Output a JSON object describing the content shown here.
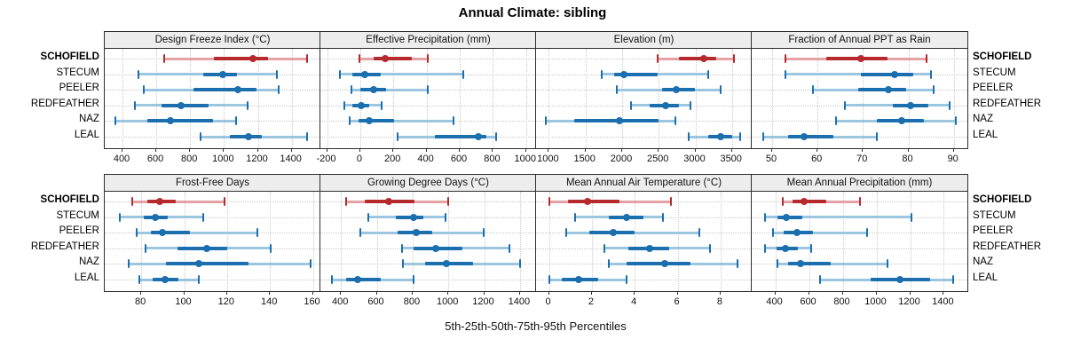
{
  "title": "Annual Climate: sibling",
  "caption": "5th-25th-50th-75th-95th Percentiles",
  "stations": [
    "SCHOFIELD",
    "STECUM",
    "PEELER",
    "REDFEATHER",
    "NAZ",
    "LEAL"
  ],
  "highlight_station": "SCHOFIELD",
  "colors": {
    "highlight_dark": "#b62a2e",
    "highlight_light": "#e5a2a4",
    "normal_dark": "#1b6fae",
    "normal_light": "#9cc5e0",
    "strip_bg": "#ededed",
    "panel_border": "#2e2e2e",
    "grid": "#c9c9c9"
  },
  "chart_data": {
    "type": "dotplot-percentiles",
    "percentile_labels": [
      "5th",
      "25th",
      "50th",
      "75th",
      "95th"
    ],
    "legend_note": "one series per station; SCHOFIELD highlighted red",
    "panels": [
      {
        "title": "Design Freeze Index (°C)",
        "row": 0,
        "col": 0,
        "axis_min": 295,
        "axis_max": 1570,
        "ticks": [
          400,
          600,
          800,
          1000,
          1200,
          1400
        ],
        "series": [
          {
            "station": "SCHOFIELD",
            "values": [
              645,
              940,
              1170,
              1260,
              1490
            ]
          },
          {
            "station": "STECUM",
            "values": [
              495,
              875,
              990,
              1075,
              1315
            ]
          },
          {
            "station": "PEELER",
            "values": [
              525,
              820,
              1080,
              1190,
              1325
            ]
          },
          {
            "station": "REDFEATHER",
            "values": [
              475,
              630,
              745,
              910,
              1140
            ]
          },
          {
            "station": "NAZ",
            "values": [
              360,
              545,
              685,
              935,
              1070
            ]
          },
          {
            "station": "LEAL",
            "values": [
              860,
              1035,
              1145,
              1225,
              1490
            ]
          }
        ]
      },
      {
        "title": "Effective Precipitation (mm)",
        "row": 0,
        "col": 1,
        "axis_min": -240,
        "axis_max": 1060,
        "ticks": [
          -200,
          0,
          200,
          400,
          600,
          800,
          1000
        ],
        "series": [
          {
            "station": "SCHOFIELD",
            "values": [
              -5,
              80,
              150,
              310,
              405
            ]
          },
          {
            "station": "STECUM",
            "values": [
              -120,
              -45,
              25,
              125,
              620
            ]
          },
          {
            "station": "PEELER",
            "values": [
              -55,
              0,
              80,
              155,
              405
            ]
          },
          {
            "station": "REDFEATHER",
            "values": [
              -95,
              -45,
              5,
              55,
              130
            ]
          },
          {
            "station": "NAZ",
            "values": [
              -65,
              -10,
              55,
              205,
              560
            ]
          },
          {
            "station": "LEAL",
            "values": [
              225,
              450,
              710,
              760,
              820
            ]
          }
        ]
      },
      {
        "title": "Elevation (m)",
        "row": 0,
        "col": 2,
        "axis_min": 825,
        "axis_max": 3770,
        "ticks": [
          1000,
          1500,
          2000,
          2500,
          3000,
          3500
        ],
        "series": [
          {
            "station": "SCHOFIELD",
            "values": [
              2490,
              2775,
              3115,
              3285,
              3530
            ]
          },
          {
            "station": "STECUM",
            "values": [
              1725,
              1885,
              2025,
              2485,
              3175
            ]
          },
          {
            "station": "PEELER",
            "values": [
              1925,
              2550,
              2745,
              2990,
              3340
            ]
          },
          {
            "station": "REDFEATHER",
            "values": [
              2125,
              2375,
              2595,
              2775,
              2935
            ]
          },
          {
            "station": "NAZ",
            "values": [
              955,
              1350,
              1965,
              2500,
              2725
            ]
          },
          {
            "station": "LEAL",
            "values": [
              2910,
              3170,
              3350,
              3500,
              3610
            ]
          }
        ]
      },
      {
        "title": "Fraction of Annual PPT as Rain",
        "row": 0,
        "col": 3,
        "axis_min": 45.5,
        "axis_max": 93,
        "ticks": [
          50,
          60,
          70,
          80,
          90
        ],
        "series": [
          {
            "station": "SCHOFIELD",
            "values": [
              53,
              62,
              69.5,
              75.5,
              84
            ]
          },
          {
            "station": "STECUM",
            "values": [
              53,
              69.5,
              77,
              81,
              85
            ]
          },
          {
            "station": "PEELER",
            "values": [
              59,
              69,
              75.5,
              79.5,
              85.5
            ]
          },
          {
            "station": "REDFEATHER",
            "values": [
              66,
              76.5,
              80.5,
              84.5,
              89
            ]
          },
          {
            "station": "NAZ",
            "values": [
              64,
              73,
              78.5,
              83.5,
              90.5
            ]
          },
          {
            "station": "LEAL",
            "values": [
              48,
              53.5,
              57,
              63.5,
              73
            ]
          }
        ]
      },
      {
        "title": "Frost-Free Days",
        "row": 1,
        "col": 0,
        "axis_min": 63,
        "axis_max": 163.5,
        "ticks": [
          80,
          100,
          120,
          140,
          160
        ],
        "series": [
          {
            "station": "SCHOFIELD",
            "values": [
              76,
              83,
              88.5,
              96,
              119
            ]
          },
          {
            "station": "STECUM",
            "values": [
              70,
              81,
              86.5,
              92.5,
              109
            ]
          },
          {
            "station": "PEELER",
            "values": [
              78,
              84.5,
              90,
              102.5,
              134
            ]
          },
          {
            "station": "REDFEATHER",
            "values": [
              82,
              97,
              110.5,
              120,
              140.5
            ]
          },
          {
            "station": "NAZ",
            "values": [
              74,
              91.5,
              107,
              130,
              159
            ]
          },
          {
            "station": "LEAL",
            "values": [
              79,
              85.5,
              91,
              97.5,
              107
            ]
          }
        ]
      },
      {
        "title": "Growing Degree Days (°C)",
        "row": 1,
        "col": 1,
        "axis_min": 285,
        "axis_max": 1490,
        "ticks": [
          400,
          600,
          800,
          1000,
          1200,
          1400
        ],
        "series": [
          {
            "station": "SCHOFIELD",
            "values": [
              430,
              535,
              665,
              810,
              1000
            ]
          },
          {
            "station": "STECUM",
            "values": [
              555,
              705,
              805,
              860,
              985
            ]
          },
          {
            "station": "PEELER",
            "values": [
              510,
              715,
              820,
              910,
              1195
            ]
          },
          {
            "station": "REDFEATHER",
            "values": [
              740,
              805,
              930,
              1080,
              1340
            ]
          },
          {
            "station": "NAZ",
            "values": [
              745,
              870,
              990,
              1140,
              1400
            ]
          },
          {
            "station": "LEAL",
            "values": [
              350,
              430,
              495,
              625,
              805
            ]
          }
        ]
      },
      {
        "title": "Mean Annual Air Temperature (°C)",
        "row": 1,
        "col": 2,
        "axis_min": -0.6,
        "axis_max": 9.45,
        "ticks": [
          0,
          2,
          4,
          6,
          8
        ],
        "series": [
          {
            "station": "SCHOFIELD",
            "values": [
              0,
              0.9,
              1.8,
              3.3,
              5.7
            ]
          },
          {
            "station": "STECUM",
            "values": [
              1.2,
              2.8,
              3.6,
              4.4,
              5.3
            ]
          },
          {
            "station": "PEELER",
            "values": [
              0.8,
              1.9,
              3.0,
              4.0,
              7.0
            ]
          },
          {
            "station": "REDFEATHER",
            "values": [
              2.6,
              3.7,
              4.7,
              5.6,
              7.5
            ]
          },
          {
            "station": "NAZ",
            "values": [
              2.8,
              3.6,
              5.4,
              6.6,
              8.8
            ]
          },
          {
            "station": "LEAL",
            "values": [
              0,
              0.6,
              1.4,
              2.3,
              3.6
            ]
          }
        ]
      },
      {
        "title": "Mean Annual Precipitation (mm)",
        "row": 1,
        "col": 3,
        "axis_min": 260,
        "axis_max": 1540,
        "ticks": [
          400,
          600,
          800,
          1000,
          1200,
          1400
        ],
        "series": [
          {
            "station": "SCHOFIELD",
            "values": [
              445,
              500,
              570,
              700,
              900
            ]
          },
          {
            "station": "STECUM",
            "values": [
              340,
              410,
              465,
              560,
              1210
            ]
          },
          {
            "station": "PEELER",
            "values": [
              385,
              450,
              530,
              625,
              945
            ]
          },
          {
            "station": "REDFEATHER",
            "values": [
              340,
              405,
              460,
              535,
              615
            ]
          },
          {
            "station": "NAZ",
            "values": [
              410,
              475,
              550,
              730,
              1065
            ]
          },
          {
            "station": "LEAL",
            "values": [
              665,
              965,
              1140,
              1320,
              1455
            ]
          }
        ]
      }
    ]
  }
}
